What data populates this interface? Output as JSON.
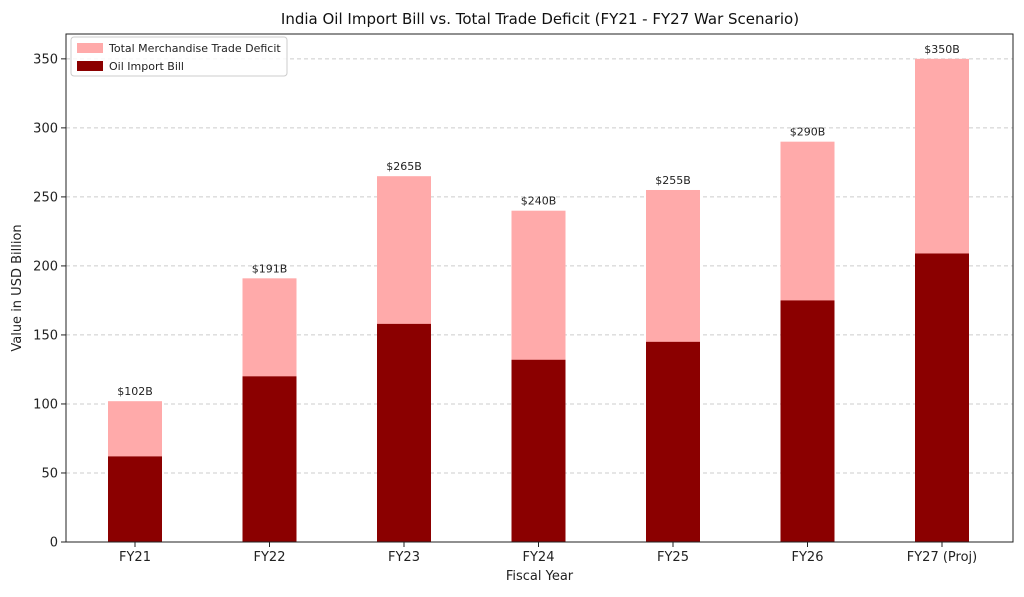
{
  "chart_data": {
    "type": "bar",
    "stacked": "overlay",
    "title": "India Oil Import Bill vs. Total Trade Deficit (FY21 - FY27 War Scenario)",
    "xlabel": "Fiscal Year",
    "ylabel": "Value in USD Billion",
    "ylim": [
      0,
      368
    ],
    "yticks": [
      0,
      50,
      100,
      150,
      200,
      250,
      300,
      350
    ],
    "grid": true,
    "legend_position": "top-left",
    "categories": [
      "FY21",
      "FY22",
      "FY23",
      "FY24",
      "FY25",
      "FY26",
      "FY27 (Proj)"
    ],
    "series": [
      {
        "name": "Total Merchandise Trade Deficit",
        "color": "#ffaaaa",
        "values": [
          102,
          191,
          265,
          240,
          255,
          290,
          350
        ],
        "labels": [
          "$102B",
          "$191B",
          "$265B",
          "$240B",
          "$255B",
          "$290B",
          "$350B"
        ]
      },
      {
        "name": "Oil Import Bill",
        "color": "#8b0000",
        "values": [
          62,
          120,
          158,
          132,
          145,
          175,
          209
        ]
      }
    ]
  }
}
